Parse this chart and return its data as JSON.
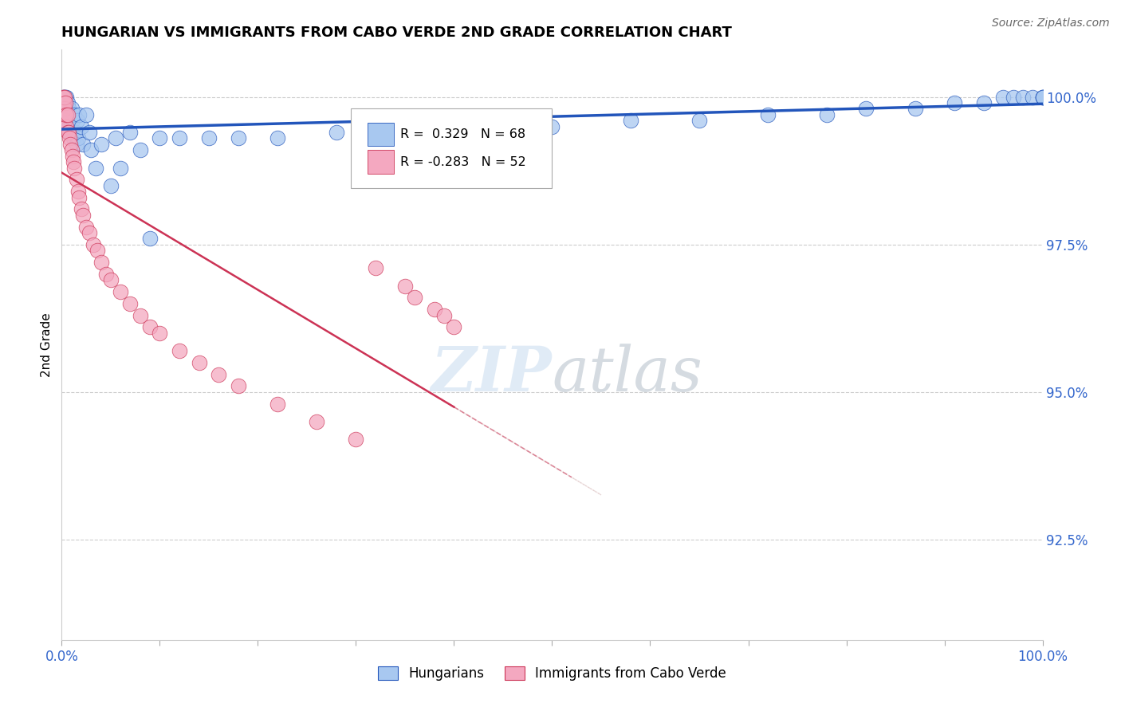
{
  "title": "HUNGARIAN VS IMMIGRANTS FROM CABO VERDE 2ND GRADE CORRELATION CHART",
  "source": "Source: ZipAtlas.com",
  "ylabel": "2nd Grade",
  "ylabel_right_labels": [
    "100.0%",
    "97.5%",
    "95.0%",
    "92.5%"
  ],
  "ylabel_right_values": [
    1.0,
    0.975,
    0.95,
    0.925
  ],
  "xmin": 0.0,
  "xmax": 1.0,
  "ymin": 0.908,
  "ymax": 1.008,
  "R_hungarian": 0.329,
  "N_hungarian": 68,
  "R_cabo_verde": -0.283,
  "N_cabo_verde": 52,
  "legend_label_1": "Hungarians",
  "legend_label_2": "Immigrants from Cabo Verde",
  "color_hungarian": "#A8C8F0",
  "color_cabo_verde": "#F4A8C0",
  "trendline_color_hungarian": "#2255BB",
  "trendline_color_cabo_verde": "#CC3355",
  "watermark_color": "#C8DCF0",
  "background_color": "#FFFFFF",
  "hungarian_x": [
    0.001,
    0.001,
    0.002,
    0.002,
    0.002,
    0.003,
    0.003,
    0.003,
    0.004,
    0.004,
    0.005,
    0.005,
    0.005,
    0.006,
    0.006,
    0.007,
    0.007,
    0.008,
    0.008,
    0.009,
    0.01,
    0.01,
    0.011,
    0.012,
    0.013,
    0.014,
    0.015,
    0.016,
    0.017,
    0.018,
    0.02,
    0.022,
    0.025,
    0.028,
    0.03,
    0.035,
    0.04,
    0.05,
    0.055,
    0.06,
    0.07,
    0.08,
    0.09,
    0.1,
    0.12,
    0.15,
    0.18,
    0.22,
    0.28,
    0.35,
    0.42,
    0.5,
    0.58,
    0.65,
    0.72,
    0.78,
    0.82,
    0.87,
    0.91,
    0.94,
    0.96,
    0.97,
    0.98,
    0.99,
    1.0,
    1.0,
    1.0,
    1.0
  ],
  "hungarian_y": [
    0.999,
    1.0,
    0.997,
    0.999,
    1.0,
    0.996,
    0.998,
    1.0,
    0.997,
    1.0,
    0.995,
    0.998,
    1.0,
    0.996,
    0.999,
    0.995,
    0.998,
    0.994,
    0.997,
    0.996,
    0.994,
    0.998,
    0.996,
    0.993,
    0.997,
    0.994,
    0.992,
    0.996,
    0.993,
    0.997,
    0.995,
    0.992,
    0.997,
    0.994,
    0.991,
    0.988,
    0.992,
    0.985,
    0.993,
    0.988,
    0.994,
    0.991,
    0.976,
    0.993,
    0.993,
    0.993,
    0.993,
    0.993,
    0.994,
    0.994,
    0.995,
    0.995,
    0.996,
    0.996,
    0.997,
    0.997,
    0.998,
    0.998,
    0.999,
    0.999,
    1.0,
    1.0,
    1.0,
    1.0,
    1.0,
    1.0,
    1.0,
    1.0
  ],
  "caboverde_x": [
    0.001,
    0.001,
    0.001,
    0.002,
    0.002,
    0.002,
    0.003,
    0.003,
    0.003,
    0.004,
    0.004,
    0.005,
    0.005,
    0.006,
    0.006,
    0.007,
    0.008,
    0.009,
    0.01,
    0.011,
    0.012,
    0.013,
    0.015,
    0.017,
    0.018,
    0.02,
    0.022,
    0.025,
    0.028,
    0.032,
    0.036,
    0.04,
    0.045,
    0.05,
    0.06,
    0.07,
    0.08,
    0.09,
    0.1,
    0.12,
    0.14,
    0.16,
    0.18,
    0.22,
    0.26,
    0.3,
    0.32,
    0.35,
    0.36,
    0.38,
    0.39,
    0.4
  ],
  "caboverde_y": [
    0.999,
    1.0,
    0.998,
    0.997,
    0.999,
    1.0,
    0.996,
    0.998,
    1.0,
    0.997,
    0.999,
    0.995,
    0.997,
    0.994,
    0.997,
    0.994,
    0.993,
    0.992,
    0.991,
    0.99,
    0.989,
    0.988,
    0.986,
    0.984,
    0.983,
    0.981,
    0.98,
    0.978,
    0.977,
    0.975,
    0.974,
    0.972,
    0.97,
    0.969,
    0.967,
    0.965,
    0.963,
    0.961,
    0.96,
    0.957,
    0.955,
    0.953,
    0.951,
    0.948,
    0.945,
    0.942,
    0.971,
    0.968,
    0.966,
    0.964,
    0.963,
    0.961
  ]
}
